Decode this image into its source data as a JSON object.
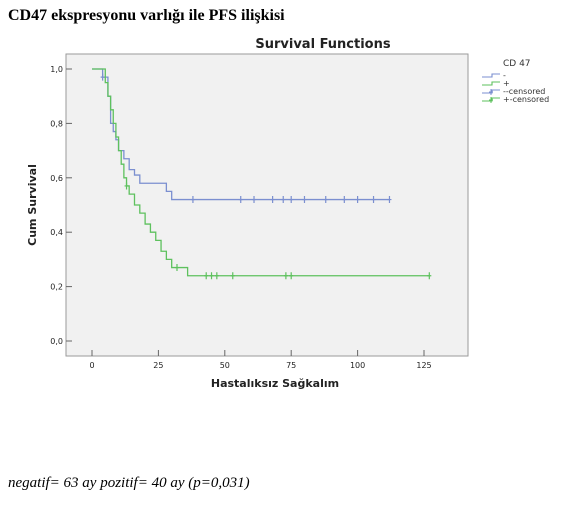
{
  "page": {
    "heading": "CD47 ekspresyonu varlığı ile PFS ilişkisi",
    "footer": "negatif= 63 ay pozitif= 40 ay (p=0,031)"
  },
  "chart_data": {
    "type": "line",
    "title": "Survival Functions",
    "xlabel": "Hastalıksız Sağkalım",
    "ylabel": "Cum Survival",
    "xlim": [
      0,
      125
    ],
    "ylim": [
      0,
      1
    ],
    "x_ticks": [
      0,
      25,
      50,
      75,
      100,
      125
    ],
    "y_ticks": [
      0,
      0.2,
      0.4,
      0.6,
      0.8,
      1.0
    ],
    "x_tick_labels": [
      "0",
      "25",
      "50",
      "75",
      "100",
      "125"
    ],
    "y_tick_labels": [
      "0,0",
      "0,2",
      "0,4",
      "0,6",
      "0,8",
      "1,0"
    ],
    "grid": false,
    "legend": {
      "title": "CD 47",
      "placement": "right",
      "entries": [
        "-",
        "+",
        "--censored",
        "+-censored"
      ]
    },
    "series": [
      {
        "name": "-",
        "color": "#7b8fd0",
        "steps": [
          [
            0,
            1.0
          ],
          [
            4,
            0.97
          ],
          [
            6,
            0.9
          ],
          [
            7,
            0.8
          ],
          [
            8,
            0.77
          ],
          [
            9,
            0.74
          ],
          [
            10,
            0.7
          ],
          [
            12,
            0.67
          ],
          [
            14,
            0.63
          ],
          [
            16,
            0.61
          ],
          [
            18,
            0.58
          ],
          [
            28,
            0.55
          ],
          [
            30,
            0.52
          ],
          [
            112,
            0.52
          ]
        ],
        "censored": [
          4,
          38,
          56,
          61,
          68,
          72,
          75,
          80,
          88,
          95,
          100,
          106,
          112
        ]
      },
      {
        "name": "+",
        "color": "#5ec15e",
        "steps": [
          [
            0,
            1.0
          ],
          [
            5,
            0.95
          ],
          [
            6,
            0.9
          ],
          [
            7,
            0.85
          ],
          [
            8,
            0.8
          ],
          [
            9,
            0.75
          ],
          [
            10,
            0.7
          ],
          [
            11,
            0.65
          ],
          [
            12,
            0.6
          ],
          [
            13,
            0.57
          ],
          [
            14,
            0.54
          ],
          [
            16,
            0.5
          ],
          [
            18,
            0.47
          ],
          [
            20,
            0.43
          ],
          [
            22,
            0.4
          ],
          [
            24,
            0.37
          ],
          [
            26,
            0.33
          ],
          [
            28,
            0.3
          ],
          [
            30,
            0.27
          ],
          [
            36,
            0.24
          ],
          [
            127,
            0.24
          ]
        ],
        "censored": [
          13,
          32,
          43,
          45,
          47,
          53,
          73,
          75,
          127
        ]
      }
    ]
  }
}
